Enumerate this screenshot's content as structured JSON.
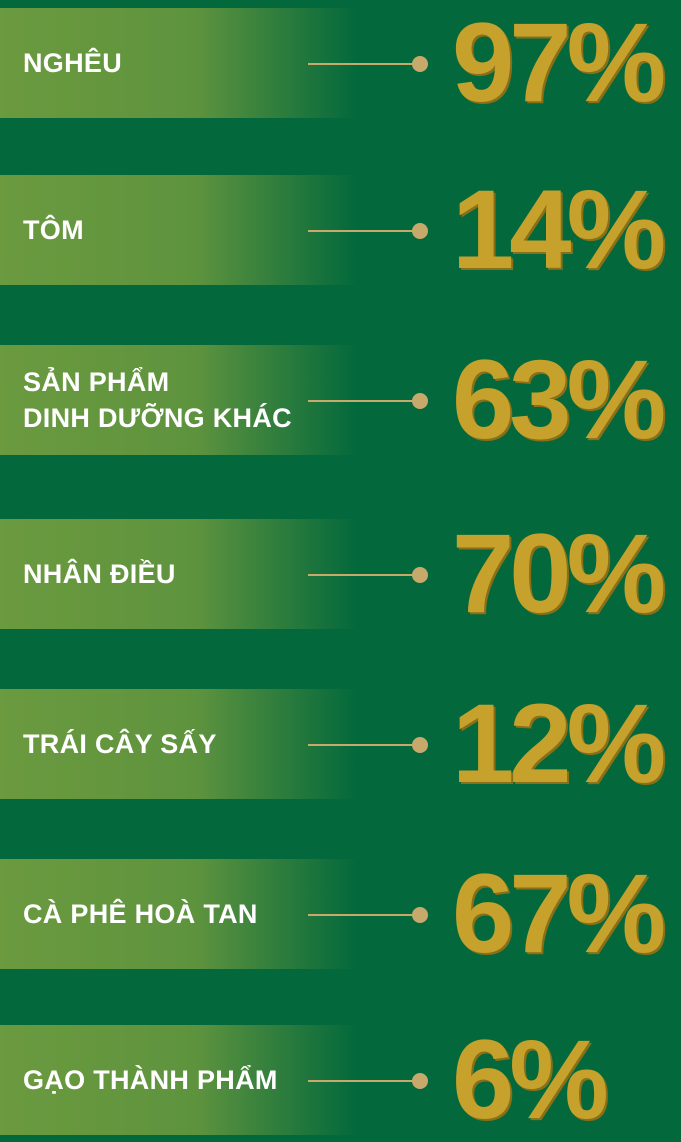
{
  "items": [
    {
      "label": [
        "NGHÊU"
      ],
      "value": "97%"
    },
    {
      "label": [
        "TÔM"
      ],
      "value": "14%"
    },
    {
      "label": [
        "SẢN PHẨM",
        "DINH DƯỠNG KHÁC"
      ],
      "value": "63%"
    },
    {
      "label": [
        "NHÂN ĐIỀU"
      ],
      "value": "70%"
    },
    {
      "label": [
        "TRÁI CÂY SẤY"
      ],
      "value": "12%"
    },
    {
      "label": [
        "CÀ PHÊ HOÀ TAN"
      ],
      "value": "67%"
    },
    {
      "label": [
        "GẠO THÀNH PHẨM"
      ],
      "value": "6%"
    }
  ]
}
